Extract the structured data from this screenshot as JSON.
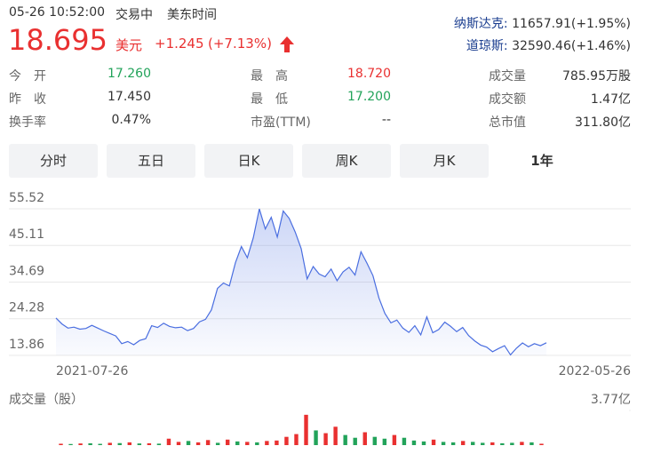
{
  "header": {
    "time": "05-26 10:52:00",
    "status": "交易中",
    "timezone": "美东时间",
    "price": "18.695",
    "currency": "美元",
    "change": "+1.245",
    "change_pct": "(+7.13%)"
  },
  "indices": [
    {
      "name": "纳斯达克:",
      "value": "11657.91(+1.95%)"
    },
    {
      "name": "道琼斯:",
      "value": "32590.46(+1.46%)"
    }
  ],
  "stats": [
    [
      {
        "label": "今　开",
        "value": "17.260"
      },
      {
        "label": "最　高",
        "value": "18.720"
      },
      {
        "label": "成交量",
        "value": "785.95万股"
      }
    ],
    [
      {
        "label": "昨　收",
        "value": "17.450"
      },
      {
        "label": "最　低",
        "value": "17.200"
      },
      {
        "label": "成交额",
        "value": "1.47亿"
      }
    ],
    [
      {
        "label": "换手率",
        "value": "0.47%"
      },
      {
        "label": "市盈(TTM)",
        "value": "--"
      },
      {
        "label": "总市值",
        "value": "311.80亿"
      }
    ]
  ],
  "tabs": [
    "分时",
    "五日",
    "日K",
    "周K",
    "月K",
    "1年"
  ],
  "chart_data": [
    {
      "type": "line",
      "categories": [
        "2021-07-26",
        null,
        null,
        null,
        null,
        null,
        null,
        null,
        null,
        null,
        null,
        null,
        null,
        null,
        null,
        null,
        null,
        null,
        null,
        null,
        null,
        null,
        null,
        null,
        null,
        null,
        null,
        null,
        null,
        null,
        null,
        null,
        null,
        null,
        null,
        null,
        null,
        null,
        null,
        null,
        null,
        null,
        null,
        null,
        null,
        null,
        null,
        null,
        null,
        null,
        null,
        null,
        null,
        null,
        null,
        null,
        null,
        null,
        null,
        null,
        null,
        null,
        null,
        null,
        null,
        null,
        null,
        null,
        null,
        null,
        null,
        null,
        null,
        null,
        null,
        null,
        null,
        null,
        null,
        null,
        null,
        null,
        "2022-05-26"
      ],
      "values": [
        24.5,
        22.8,
        21.6,
        21.9,
        21.3,
        21.5,
        22.4,
        21.6,
        20.8,
        20.1,
        19.4,
        17.2,
        17.8,
        16.9,
        18.1,
        18.6,
        22.3,
        21.8,
        23.0,
        22.1,
        21.7,
        21.9,
        20.9,
        21.5,
        23.4,
        24.1,
        26.8,
        32.9,
        34.4,
        33.6,
        40.2,
        44.8,
        41.6,
        47.3,
        55.5,
        49.8,
        53.1,
        47.5,
        54.9,
        52.8,
        48.9,
        44.2,
        35.6,
        39.1,
        37.0,
        36.2,
        38.4,
        35.1,
        37.6,
        38.9,
        36.7,
        43.3,
        40.1,
        36.5,
        30.2,
        25.8,
        23.1,
        23.9,
        21.6,
        20.4,
        22.3,
        19.7,
        24.8,
        20.3,
        21.2,
        23.3,
        22.1,
        20.6,
        21.8,
        19.5,
        18.0,
        16.8,
        16.2,
        14.9,
        15.8,
        16.6,
        14.0,
        15.9,
        17.4,
        16.3,
        17.2,
        16.6,
        17.45
      ],
      "color": "#4a6ee0",
      "ylim": [
        13.86,
        55.52
      ],
      "yticks": [
        13.86,
        24.28,
        34.69,
        45.11,
        55.52
      ],
      "grid": true
    },
    {
      "type": "bar",
      "title": "成交量（股）",
      "values": [
        0.15,
        0.12,
        0.18,
        0.2,
        0.14,
        0.25,
        0.22,
        0.3,
        0.18,
        0.2,
        0.16,
        0.7,
        0.35,
        0.45,
        0.3,
        0.55,
        0.25,
        0.6,
        0.4,
        0.35,
        0.3,
        0.45,
        0.5,
        0.9,
        1.2,
        3.3,
        1.6,
        1.3,
        2.0,
        1.1,
        0.8,
        1.4,
        0.9,
        0.7,
        1.1,
        0.8,
        0.5,
        0.4,
        0.6,
        0.35,
        0.3,
        0.45,
        0.35,
        0.25,
        0.3,
        0.2,
        0.25,
        0.35,
        0.3,
        0.15
      ],
      "colors": [
        "#e93030",
        "#22a35a",
        "#e93030",
        "#22a35a",
        "#22a35a",
        "#e93030",
        "#22a35a",
        "#e93030",
        "#22a35a",
        "#e93030",
        "#22a35a",
        "#e93030",
        "#e93030",
        "#22a35a",
        "#e93030",
        "#e93030",
        "#22a35a",
        "#e93030",
        "#22a35a",
        "#e93030",
        "#22a35a",
        "#e93030",
        "#e93030",
        "#e93030",
        "#e93030",
        "#e93030",
        "#22a35a",
        "#e93030",
        "#e93030",
        "#22a35a",
        "#22a35a",
        "#e93030",
        "#22a35a",
        "#22a35a",
        "#e93030",
        "#22a35a",
        "#22a35a",
        "#22a35a",
        "#e93030",
        "#22a35a",
        "#22a35a",
        "#e93030",
        "#22a35a",
        "#22a35a",
        "#e93030",
        "#22a35a",
        "#22a35a",
        "#e93030",
        "#22a35a",
        "#e93030"
      ],
      "ylim": [
        0,
        3.77
      ],
      "yticks": [
        {
          "value": 3.77,
          "label": "3.77亿"
        }
      ]
    }
  ]
}
